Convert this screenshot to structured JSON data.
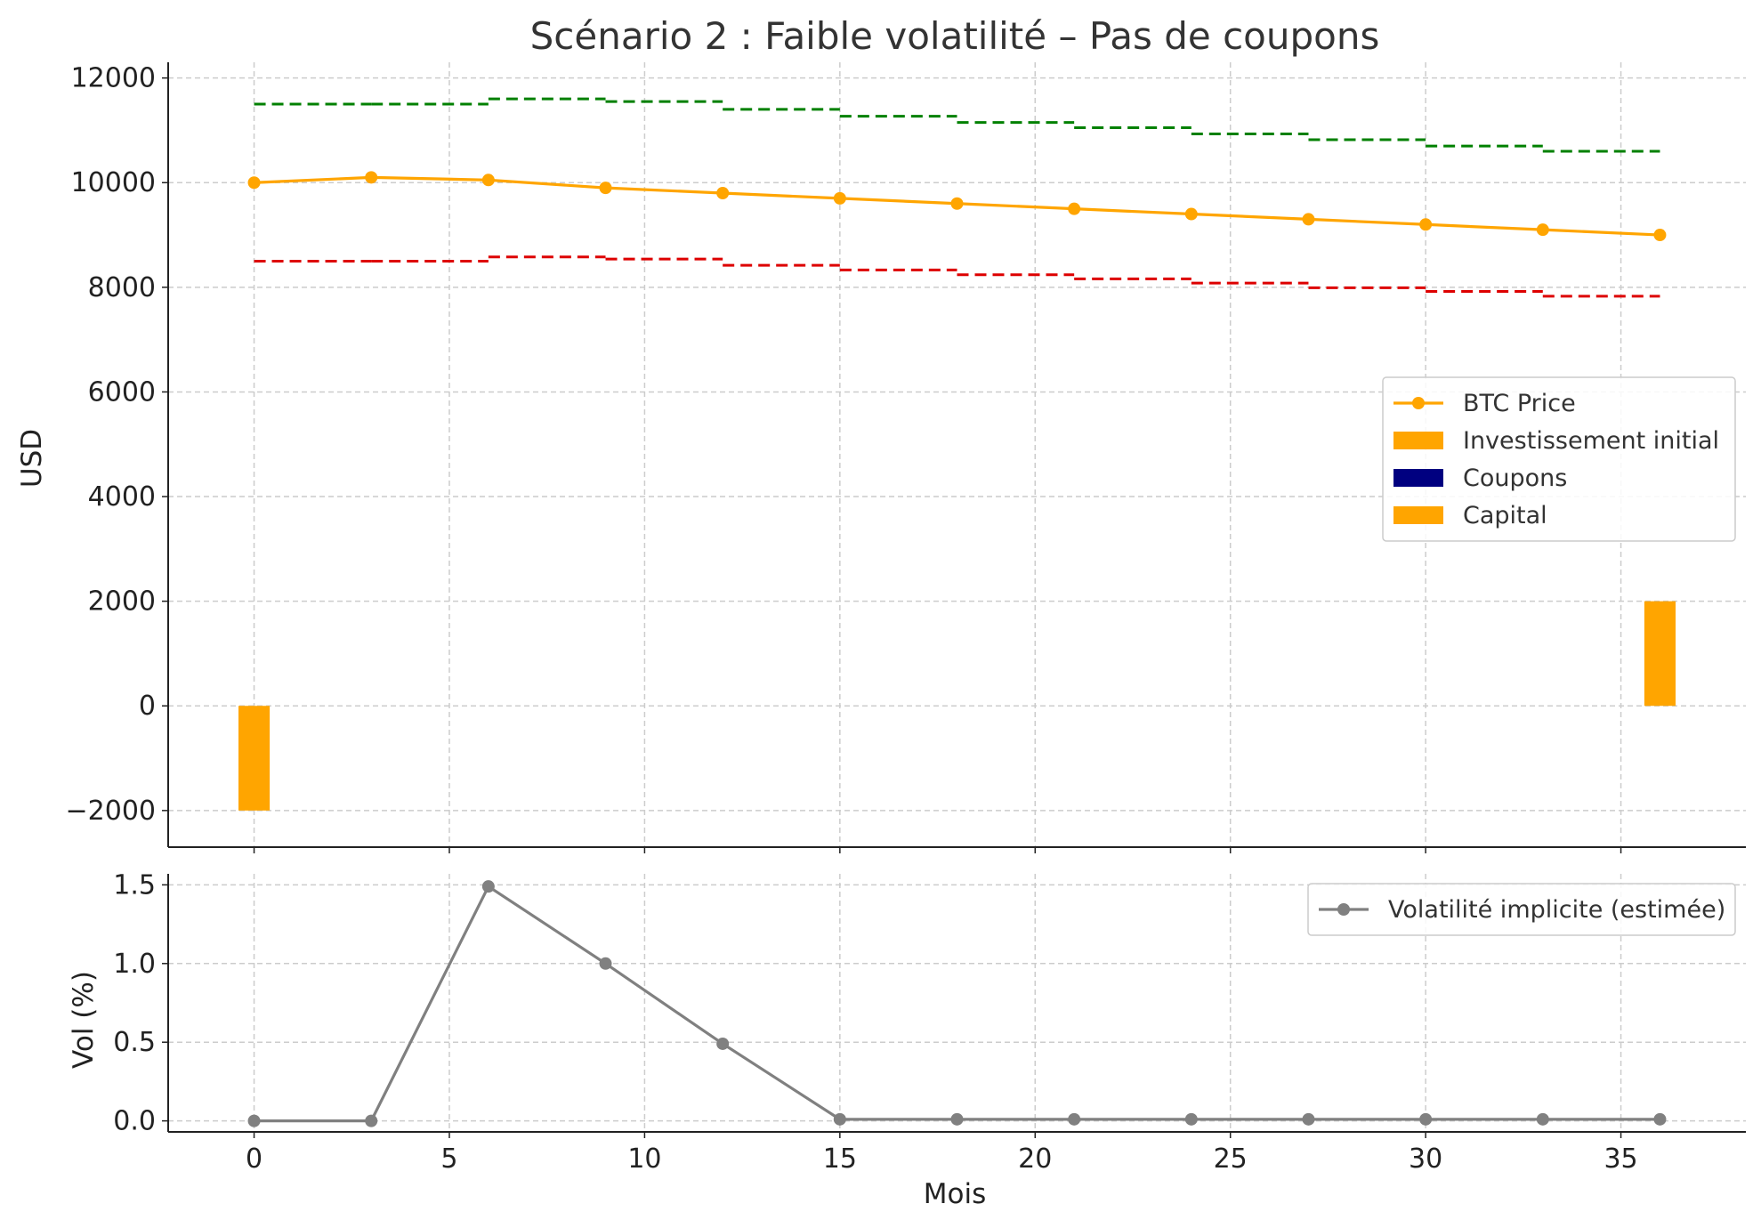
{
  "chart_data": [
    {
      "type": "line",
      "title": "Scénario 2 : Faible volatilité – Pas de coupons",
      "xlabel": "",
      "ylabel": "USD",
      "xlim": [
        -2.2,
        38.2
      ],
      "ylim": [
        -2700,
        12300
      ],
      "xticks": [
        0,
        5,
        10,
        15,
        20,
        25,
        30,
        35
      ],
      "yticks": [
        -2000,
        0,
        2000,
        4000,
        6000,
        8000,
        10000,
        12000
      ],
      "ytick_labels": [
        "−2000",
        "0",
        "2000",
        "4000",
        "6000",
        "8000",
        "10000",
        "12000"
      ],
      "grid": true,
      "legend_position": "center-right",
      "series": [
        {
          "name": "BTC Price",
          "type": "line",
          "color": "#FFA500",
          "marker": "circle",
          "x": [
            0,
            3,
            6,
            9,
            12,
            15,
            18,
            21,
            24,
            27,
            30,
            33,
            36
          ],
          "values": [
            10000,
            10100,
            10050,
            9900,
            9800,
            9700,
            9600,
            9500,
            9400,
            9300,
            9200,
            9100,
            9000
          ]
        },
        {
          "type": "step-dashed",
          "color": "#008000",
          "x": [
            0,
            3,
            6,
            9,
            12,
            15,
            18,
            21,
            24,
            27,
            30,
            33,
            36
          ],
          "values": [
            11500,
            11500,
            11600,
            11550,
            11400,
            11270,
            11150,
            11050,
            10930,
            10820,
            10700,
            10600,
            10600
          ]
        },
        {
          "type": "step-dashed",
          "color": "#DD0000",
          "x": [
            0,
            3,
            6,
            9,
            12,
            15,
            18,
            21,
            24,
            27,
            30,
            33,
            36
          ],
          "values": [
            8500,
            8500,
            8580,
            8540,
            8420,
            8330,
            8240,
            8160,
            8080,
            7990,
            7920,
            7830,
            7830
          ]
        },
        {
          "name": "Investissement initial",
          "type": "bar",
          "color": "#FFA500",
          "x": [
            0
          ],
          "values": [
            -2000
          ]
        },
        {
          "name": "Coupons",
          "type": "bar",
          "color": "#000080",
          "x": [],
          "values": []
        },
        {
          "name": "Capital",
          "type": "bar",
          "color": "#FFA500",
          "x": [
            36
          ],
          "values": [
            2000
          ]
        }
      ]
    },
    {
      "type": "line",
      "title": "",
      "xlabel": "Mois",
      "ylabel": "Vol (%)",
      "xlim": [
        -2.2,
        38.2
      ],
      "ylim": [
        -0.07,
        1.57
      ],
      "xticks": [
        0,
        5,
        10,
        15,
        20,
        25,
        30,
        35
      ],
      "yticks": [
        0.0,
        0.5,
        1.0,
        1.5
      ],
      "ytick_labels": [
        "0.0",
        "0.5",
        "1.0",
        "1.5"
      ],
      "grid": true,
      "legend_position": "top-right",
      "series": [
        {
          "name": "Volatilité implicite (estimée)",
          "type": "line",
          "color": "#808080",
          "marker": "circle",
          "x": [
            0,
            3,
            6,
            9,
            12,
            15,
            18,
            21,
            24,
            27,
            30,
            33,
            36
          ],
          "values": [
            0.0,
            0.0,
            1.49,
            1.0,
            0.49,
            0.01,
            0.01,
            0.01,
            0.01,
            0.01,
            0.01,
            0.01,
            0.01
          ]
        }
      ]
    }
  ]
}
